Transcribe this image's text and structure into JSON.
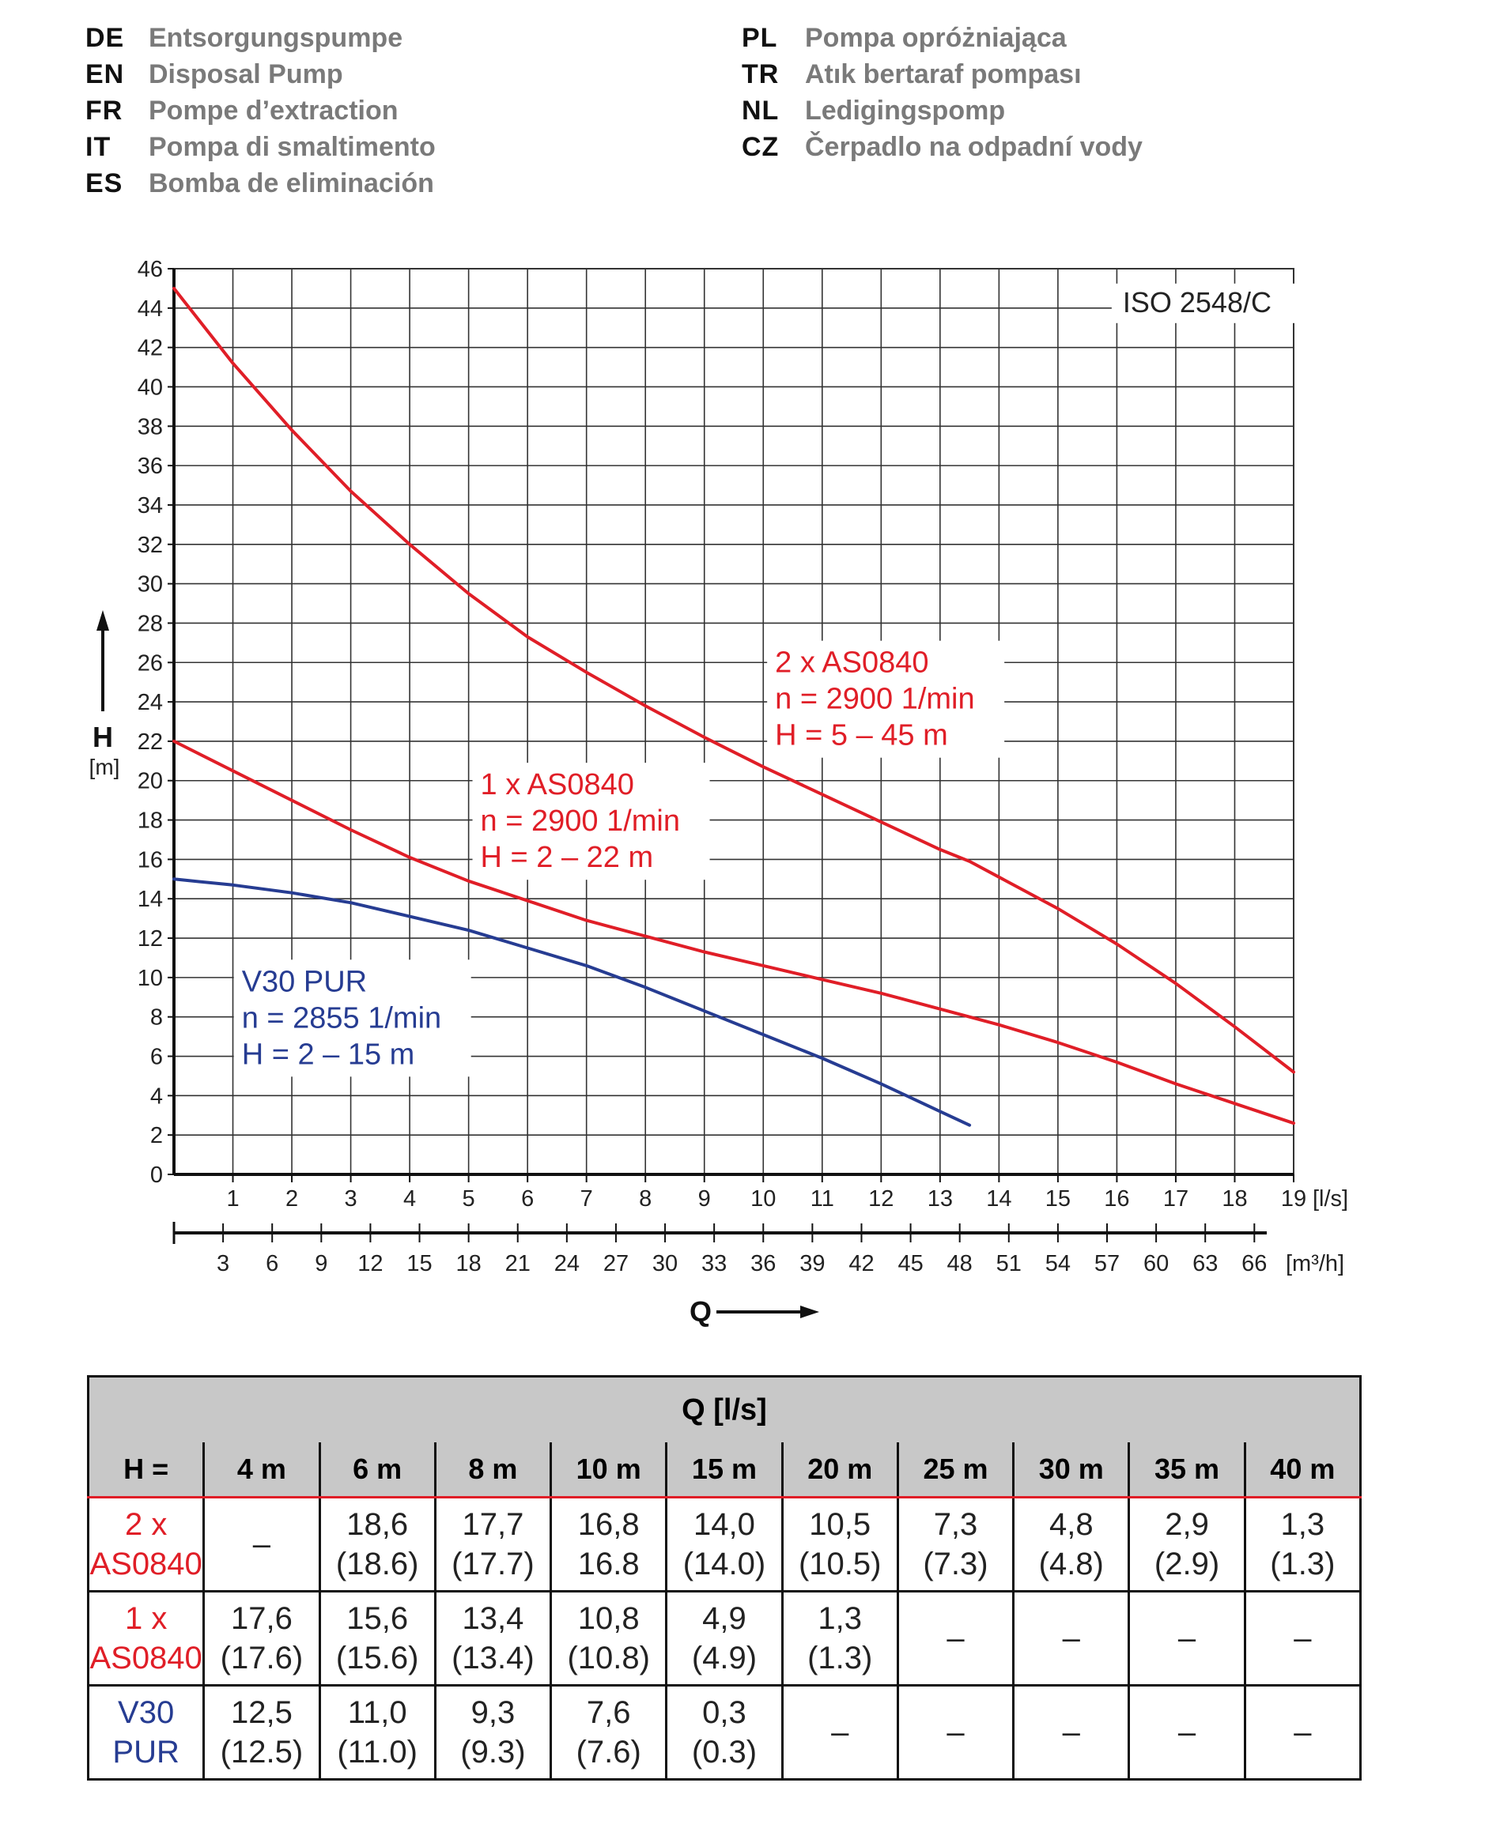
{
  "languages": [
    {
      "code": "DE",
      "name": "Entsorgungspumpe"
    },
    {
      "code": "PL",
      "name": "Pompa opróżniająca"
    },
    {
      "code": "EN",
      "name": "Disposal Pump"
    },
    {
      "code": "TR",
      "name": "Atık bertaraf pompası"
    },
    {
      "code": "FR",
      "name": "Pompe d’extraction"
    },
    {
      "code": "NL",
      "name": "Ledigingspomp"
    },
    {
      "code": "IT",
      "name": "Pompa di smaltimento"
    },
    {
      "code": "CZ",
      "name": "Čerpadlo na odpadní vody"
    },
    {
      "code": "ES",
      "name": "Bomba de eliminación"
    }
  ],
  "chart_data": {
    "type": "line",
    "standard_label": "ISO 2548/C",
    "ylabel": "H",
    "yunit": "[m]",
    "xlabel": "Q",
    "x_unit": "[l/s]",
    "x2_unit": "[m³/h]",
    "xlim": [
      0,
      19
    ],
    "ylim": [
      0,
      46
    ],
    "x_ticks": [
      1,
      2,
      3,
      4,
      5,
      6,
      7,
      8,
      9,
      10,
      11,
      12,
      13,
      14,
      15,
      16,
      17,
      18,
      19
    ],
    "x2_ticks": [
      3,
      6,
      9,
      12,
      15,
      18,
      21,
      24,
      27,
      30,
      33,
      36,
      39,
      42,
      45,
      48,
      51,
      54,
      57,
      60,
      63,
      66
    ],
    "y_ticks": [
      0,
      2,
      4,
      6,
      8,
      10,
      12,
      14,
      16,
      18,
      20,
      22,
      24,
      26,
      28,
      30,
      32,
      34,
      36,
      38,
      40,
      42,
      44,
      46
    ],
    "grid": true,
    "series": [
      {
        "name": "2 x AS0840",
        "label_lines": [
          "2 x AS0840",
          "n = 2900 1/min",
          "H = 5 – 45 m"
        ],
        "label_at": [
          10.2,
          25.5
        ],
        "color": "#e01e27",
        "points": [
          [
            0,
            45
          ],
          [
            1,
            41.2
          ],
          [
            2,
            37.8
          ],
          [
            3,
            34.7
          ],
          [
            4,
            32
          ],
          [
            5,
            29.5
          ],
          [
            6,
            27.3
          ],
          [
            7,
            25.5
          ],
          [
            8,
            23.8
          ],
          [
            9,
            22.2
          ],
          [
            10,
            20.7
          ],
          [
            11,
            19.3
          ],
          [
            12,
            17.9
          ],
          [
            13,
            16.5
          ],
          [
            13.5,
            15.9
          ],
          [
            14,
            15.1
          ],
          [
            15,
            13.5
          ],
          [
            16,
            11.7
          ],
          [
            17,
            9.7
          ],
          [
            18,
            7.5
          ],
          [
            19,
            5.2
          ]
        ]
      },
      {
        "name": "1 x AS0840",
        "label_lines": [
          "1 x AS0840",
          "n = 2900 1/min",
          "H = 2 – 22 m"
        ],
        "label_at": [
          5.2,
          19.3
        ],
        "color": "#e01e27",
        "points": [
          [
            0,
            22
          ],
          [
            1,
            20.5
          ],
          [
            2,
            19
          ],
          [
            3,
            17.5
          ],
          [
            4,
            16.1
          ],
          [
            5,
            14.9
          ],
          [
            6,
            13.9
          ],
          [
            7,
            12.9
          ],
          [
            8,
            12.1
          ],
          [
            9,
            11.3
          ],
          [
            10,
            10.6
          ],
          [
            11,
            9.9
          ],
          [
            12,
            9.2
          ],
          [
            13,
            8.4
          ],
          [
            14,
            7.6
          ],
          [
            15,
            6.7
          ],
          [
            16,
            5.7
          ],
          [
            17,
            4.6
          ],
          [
            18,
            3.6
          ],
          [
            19,
            2.6
          ]
        ]
      },
      {
        "name": "V30 PUR",
        "label_lines": [
          "V30 PUR",
          "n = 2855 1/min",
          "H = 2 – 15 m"
        ],
        "label_at": [
          1.15,
          9.3
        ],
        "color": "#263c92",
        "points": [
          [
            0,
            15
          ],
          [
            1,
            14.7
          ],
          [
            2,
            14.3
          ],
          [
            3,
            13.8
          ],
          [
            4,
            13.1
          ],
          [
            5,
            12.4
          ],
          [
            6,
            11.5
          ],
          [
            7,
            10.6
          ],
          [
            8,
            9.5
          ],
          [
            9,
            8.3
          ],
          [
            10,
            7.1
          ],
          [
            11,
            5.9
          ],
          [
            12,
            4.6
          ],
          [
            13,
            3.2
          ],
          [
            13.5,
            2.5
          ]
        ]
      }
    ]
  },
  "table": {
    "q_header": "Q [l/s]",
    "h_label": "H =",
    "columns": [
      "4 m",
      "6 m",
      "8 m",
      "10 m",
      "15 m",
      "20 m",
      "25 m",
      "30 m",
      "35 m",
      "40 m"
    ],
    "rows": [
      {
        "pump": "2 x\nAS0840",
        "color": "#e01e27",
        "values": [
          "–",
          "18,6\n(18.6)",
          "17,7\n(17.7)",
          "16,8\n16.8",
          "14,0\n(14.0)",
          "10,5\n(10.5)",
          "7,3\n(7.3)",
          "4,8\n(4.8)",
          "2,9\n(2.9)",
          "1,3\n(1.3)"
        ]
      },
      {
        "pump": "1 x\nAS0840",
        "color": "#e01e27",
        "values": [
          "17,6\n(17.6)",
          "15,6\n(15.6)",
          "13,4\n(13.4)",
          "10,8\n(10.8)",
          "4,9\n(4.9)",
          "1,3\n(1.3)",
          "–",
          "–",
          "–",
          "–"
        ]
      },
      {
        "pump": "V30\nPUR",
        "color": "#263c92",
        "values": [
          "12,5\n(12.5)",
          "11,0\n(11.0)",
          "9,3\n(9.3)",
          "7,6\n(7.6)",
          "0,3\n(0.3)",
          "–",
          "–",
          "–",
          "–",
          "–"
        ]
      }
    ]
  }
}
